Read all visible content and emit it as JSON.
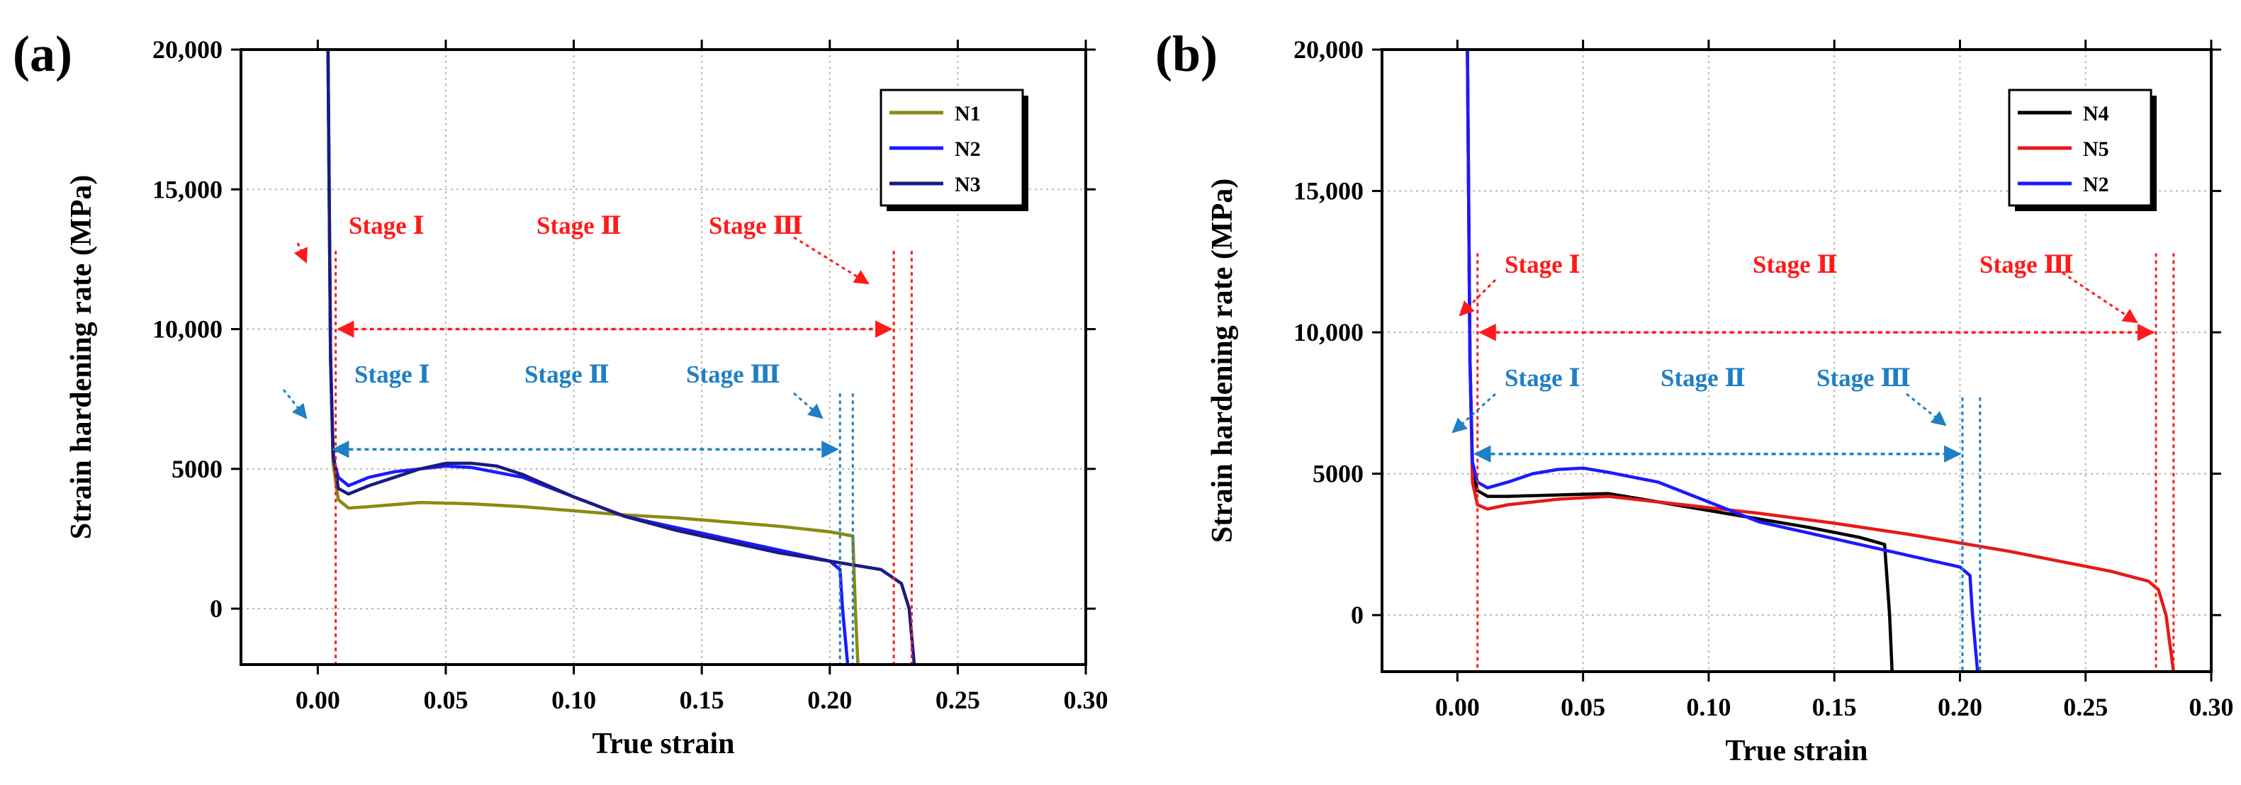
{
  "chart_data": [
    {
      "type": "line",
      "panel_label": "(a)",
      "xlabel": "True strain",
      "ylabel": "Strain hardening rate (MPa)",
      "xlim": [
        -0.03,
        0.3
      ],
      "ylim": [
        -2000,
        20000
      ],
      "x_ticks": [
        0.0,
        0.05,
        0.1,
        0.15,
        0.2,
        0.25,
        0.3
      ],
      "x_tick_labels": [
        "0.00",
        "0.05",
        "0.10",
        "0.15",
        "0.20",
        "0.25",
        "0.30"
      ],
      "y_ticks": [
        0,
        5000,
        10000,
        15000,
        20000
      ],
      "y_tick_labels": [
        "0",
        "5000",
        "10,000",
        "15,000",
        "20,000"
      ],
      "grid": true,
      "legend_position": "top-right",
      "series": [
        {
          "name": "N1",
          "color": "#8a8a14",
          "x": [
            0.004,
            0.005,
            0.006,
            0.008,
            0.012,
            0.02,
            0.04,
            0.06,
            0.08,
            0.1,
            0.12,
            0.14,
            0.16,
            0.18,
            0.2,
            0.209,
            0.21,
            0.211
          ],
          "y": [
            20000,
            9000,
            5200,
            3900,
            3600,
            3650,
            3800,
            3750,
            3650,
            3500,
            3350,
            3250,
            3100,
            2950,
            2750,
            2600,
            0,
            -2000
          ]
        },
        {
          "name": "N2",
          "color": "#1a1aff",
          "x": [
            0.004,
            0.005,
            0.006,
            0.008,
            0.012,
            0.02,
            0.03,
            0.04,
            0.05,
            0.06,
            0.08,
            0.1,
            0.12,
            0.14,
            0.16,
            0.18,
            0.2,
            0.204,
            0.205,
            0.207
          ],
          "y": [
            20000,
            9000,
            5400,
            4700,
            4400,
            4700,
            4900,
            5000,
            5100,
            5050,
            4700,
            4000,
            3300,
            2900,
            2500,
            2100,
            1700,
            1400,
            0,
            -2000
          ]
        },
        {
          "name": "N3",
          "color": "#1a1a80",
          "x": [
            0.004,
            0.005,
            0.006,
            0.008,
            0.012,
            0.02,
            0.03,
            0.04,
            0.05,
            0.06,
            0.07,
            0.08,
            0.1,
            0.12,
            0.14,
            0.16,
            0.18,
            0.2,
            0.22,
            0.228,
            0.231,
            0.233
          ],
          "y": [
            20000,
            9000,
            5600,
            4300,
            4100,
            4400,
            4700,
            5000,
            5200,
            5200,
            5100,
            4800,
            4000,
            3300,
            2800,
            2400,
            2000,
            1700,
            1400,
            900,
            0,
            -2000
          ]
        }
      ],
      "annotations": {
        "red": {
          "labels": [
            "Stage Ⅰ",
            "Stage Ⅱ",
            "Stage Ⅲ"
          ],
          "color": "#ff1a1a",
          "vlines": [
            0.007,
            0.225,
            0.232
          ],
          "arrow_span": [
            0.007,
            0.225
          ],
          "arrow_y": 10000
        },
        "blue": {
          "labels": [
            "Stage Ⅰ",
            "Stage Ⅱ",
            "Stage Ⅲ"
          ],
          "color": "#1f7fc4",
          "vlines": [
            0.204,
            0.209
          ],
          "arrow_span": [
            0.005,
            0.204
          ],
          "arrow_y": 5700
        }
      }
    },
    {
      "type": "line",
      "panel_label": "(b)",
      "xlabel": "True strain",
      "ylabel": "Strain hardening rate (MPa)",
      "xlim": [
        -0.03,
        0.3
      ],
      "ylim": [
        -2000,
        20000
      ],
      "x_ticks": [
        0.0,
        0.05,
        0.1,
        0.15,
        0.2,
        0.25,
        0.3
      ],
      "x_tick_labels": [
        "0.00",
        "0.05",
        "0.10",
        "0.15",
        "0.20",
        "0.25",
        "0.30"
      ],
      "y_ticks": [
        0,
        5000,
        10000,
        15000,
        20000
      ],
      "y_tick_labels": [
        "0",
        "5000",
        "10,000",
        "15,000",
        "20,000"
      ],
      "grid": true,
      "legend_position": "top-right",
      "series": [
        {
          "name": "N4",
          "color": "#000000",
          "x": [
            0.004,
            0.005,
            0.006,
            0.008,
            0.012,
            0.02,
            0.04,
            0.06,
            0.08,
            0.1,
            0.12,
            0.14,
            0.16,
            0.17,
            0.172,
            0.173
          ],
          "y": [
            20000,
            9000,
            5200,
            4400,
            4200,
            4200,
            4250,
            4300,
            4000,
            3700,
            3400,
            3100,
            2750,
            2500,
            0,
            -2000
          ]
        },
        {
          "name": "N5",
          "color": "#e61a1a",
          "x": [
            0.004,
            0.005,
            0.006,
            0.008,
            0.012,
            0.02,
            0.04,
            0.06,
            0.08,
            0.1,
            0.12,
            0.15,
            0.18,
            0.2,
            0.22,
            0.24,
            0.26,
            0.275,
            0.279,
            0.282,
            0.285
          ],
          "y": [
            20000,
            9000,
            4700,
            3900,
            3750,
            3900,
            4100,
            4200,
            4000,
            3800,
            3600,
            3250,
            2850,
            2550,
            2250,
            1900,
            1550,
            1200,
            900,
            0,
            -2000
          ]
        },
        {
          "name": "N2",
          "color": "#1a1aff",
          "x": [
            0.004,
            0.005,
            0.006,
            0.008,
            0.012,
            0.02,
            0.03,
            0.04,
            0.05,
            0.06,
            0.08,
            0.1,
            0.12,
            0.14,
            0.16,
            0.18,
            0.2,
            0.204,
            0.205,
            0.207
          ],
          "y": [
            20000,
            9000,
            5400,
            4700,
            4500,
            4700,
            5000,
            5150,
            5200,
            5050,
            4700,
            4000,
            3300,
            2900,
            2500,
            2100,
            1700,
            1400,
            0,
            -2000
          ]
        }
      ],
      "annotations": {
        "red": {
          "labels": [
            "Stage Ⅰ",
            "Stage Ⅱ",
            "Stage Ⅲ"
          ],
          "color": "#ff1a1a",
          "vlines": [
            0.008,
            0.278,
            0.285
          ],
          "arrow_span": [
            0.008,
            0.278
          ],
          "arrow_y": 10000
        },
        "blue": {
          "labels": [
            "Stage Ⅰ",
            "Stage Ⅱ",
            "Stage Ⅲ"
          ],
          "color": "#1f7fc4",
          "vlines": [
            0.201,
            0.208
          ],
          "arrow_span": [
            0.006,
            0.201
          ],
          "arrow_y": 5700
        }
      }
    }
  ]
}
